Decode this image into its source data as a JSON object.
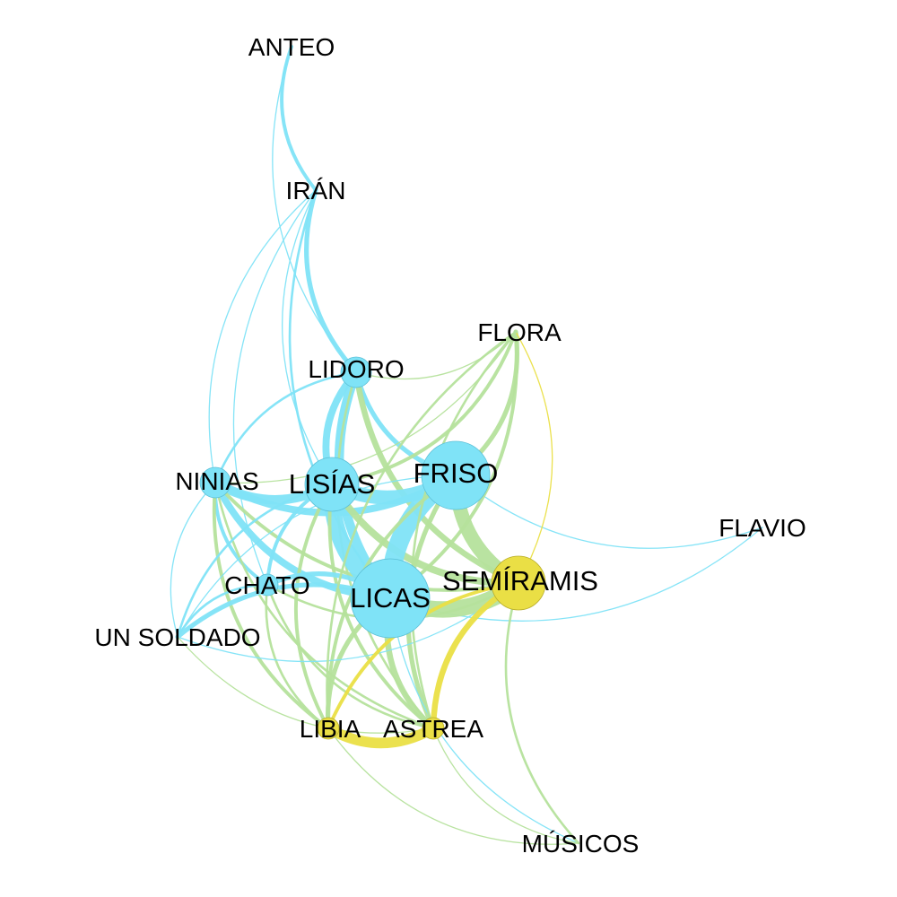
{
  "colors": {
    "blue": "#7fe3f7",
    "green": "#b5e29c",
    "yellow": "#eadf45",
    "node_stroke_blue": "#5bbfd6",
    "node_stroke_yellow": "#b8ad2a"
  },
  "nodes": [
    {
      "id": "ANTEO",
      "label": "ANTEO",
      "group": "blue",
      "weight": 0
    },
    {
      "id": "IRAN",
      "label": "IRÁN",
      "group": "blue",
      "weight": 0
    },
    {
      "id": "FLORA",
      "label": "FLORA",
      "group": "yellow",
      "weight": 0
    },
    {
      "id": "LIDORO",
      "label": "LIDORO",
      "group": "blue",
      "weight": 2
    },
    {
      "id": "NINIAS",
      "label": "NINIAS",
      "group": "blue",
      "weight": 2
    },
    {
      "id": "LISIAS",
      "label": "LISÍAS",
      "group": "blue",
      "weight": 4
    },
    {
      "id": "FRISO",
      "label": "FRISO",
      "group": "blue",
      "weight": 5
    },
    {
      "id": "FLAVIO",
      "label": "FLAVIO",
      "group": "blue",
      "weight": 0
    },
    {
      "id": "CHATO",
      "label": "CHATO",
      "group": "blue",
      "weight": 1
    },
    {
      "id": "SEMIRAMIS",
      "label": "SEMÍRAMIS",
      "group": "yellow",
      "weight": 4
    },
    {
      "id": "LICAS",
      "label": "LICAS",
      "group": "blue",
      "weight": 6
    },
    {
      "id": "UNSOLDADO",
      "label": "UN SOLDADO",
      "group": "blue",
      "weight": 0
    },
    {
      "id": "LIBIA",
      "label": "LIBIA",
      "group": "yellow",
      "weight": 1
    },
    {
      "id": "ASTREA",
      "label": "ASTREA",
      "group": "yellow",
      "weight": 1
    },
    {
      "id": "MUSICOS",
      "label": "MÚSICOS",
      "group": "yellow",
      "weight": 0
    }
  ],
  "edges": [
    {
      "from": "ANTEO",
      "to": "IRAN",
      "color": "blue",
      "weight": 3
    },
    {
      "from": "ANTEO",
      "to": "LIDORO",
      "color": "blue",
      "weight": 1
    },
    {
      "from": "IRAN",
      "to": "LIDORO",
      "color": "blue",
      "weight": 4
    },
    {
      "from": "IRAN",
      "to": "NINIAS",
      "color": "blue",
      "weight": 1
    },
    {
      "from": "IRAN",
      "to": "LISIAS",
      "color": "blue",
      "weight": 1
    },
    {
      "from": "IRAN",
      "to": "LICAS",
      "color": "blue",
      "weight": 2
    },
    {
      "from": "IRAN",
      "to": "CHATO",
      "color": "blue",
      "weight": 1
    },
    {
      "from": "LIDORO",
      "to": "LISIAS",
      "color": "blue",
      "weight": 6
    },
    {
      "from": "LIDORO",
      "to": "FRISO",
      "color": "blue",
      "weight": 4
    },
    {
      "from": "LIDORO",
      "to": "LICAS",
      "color": "blue",
      "weight": 8
    },
    {
      "from": "LIDORO",
      "to": "NINIAS",
      "color": "blue",
      "weight": 2
    },
    {
      "from": "LIDORO",
      "to": "FLORA",
      "color": "green",
      "weight": 1
    },
    {
      "from": "LIDORO",
      "to": "SEMIRAMIS",
      "color": "green",
      "weight": 5
    },
    {
      "from": "LIDORO",
      "to": "ASTREA",
      "color": "green",
      "weight": 2
    },
    {
      "from": "NINIAS",
      "to": "LISIAS",
      "color": "blue",
      "weight": 8
    },
    {
      "from": "NINIAS",
      "to": "FRISO",
      "color": "blue",
      "weight": 6
    },
    {
      "from": "NINIAS",
      "to": "LICAS",
      "color": "blue",
      "weight": 6
    },
    {
      "from": "NINIAS",
      "to": "UNSOLDADO",
      "color": "blue",
      "weight": 1
    },
    {
      "from": "NINIAS",
      "to": "CHATO",
      "color": "blue",
      "weight": 3
    },
    {
      "from": "NINIAS",
      "to": "FLORA",
      "color": "green",
      "weight": 1
    },
    {
      "from": "NINIAS",
      "to": "SEMIRAMIS",
      "color": "green",
      "weight": 3
    },
    {
      "from": "NINIAS",
      "to": "LIBIA",
      "color": "green",
      "weight": 3
    },
    {
      "from": "NINIAS",
      "to": "ASTREA",
      "color": "green",
      "weight": 2
    },
    {
      "from": "LISIAS",
      "to": "FRISO",
      "color": "blue",
      "weight": 12
    },
    {
      "from": "LISIAS",
      "to": "LICAS",
      "color": "blue",
      "weight": 14
    },
    {
      "from": "LISIAS",
      "to": "CHATO",
      "color": "blue",
      "weight": 3
    },
    {
      "from": "LISIAS",
      "to": "UNSOLDADO",
      "color": "blue",
      "weight": 2
    },
    {
      "from": "LISIAS",
      "to": "FLORA",
      "color": "green",
      "weight": 3
    },
    {
      "from": "LISIAS",
      "to": "SEMIRAMIS",
      "color": "green",
      "weight": 6
    },
    {
      "from": "LISIAS",
      "to": "LIBIA",
      "color": "green",
      "weight": 3
    },
    {
      "from": "LISIAS",
      "to": "ASTREA",
      "color": "green",
      "weight": 3
    },
    {
      "from": "FRISO",
      "to": "LICAS",
      "color": "blue",
      "weight": 16
    },
    {
      "from": "FRISO",
      "to": "FLAVIO",
      "color": "blue",
      "weight": 1
    },
    {
      "from": "FRISO",
      "to": "UNSOLDADO",
      "color": "blue",
      "weight": 1
    },
    {
      "from": "FRISO",
      "to": "FLORA",
      "color": "green",
      "weight": 4
    },
    {
      "from": "FRISO",
      "to": "SEMIRAMIS",
      "color": "green",
      "weight": 12
    },
    {
      "from": "FRISO",
      "to": "ASTREA",
      "color": "green",
      "weight": 4
    },
    {
      "from": "FRISO",
      "to": "LIBIA",
      "color": "green",
      "weight": 3
    },
    {
      "from": "LICAS",
      "to": "CHATO",
      "color": "blue",
      "weight": 4
    },
    {
      "from": "LICAS",
      "to": "UNSOLDADO",
      "color": "blue",
      "weight": 4
    },
    {
      "from": "LICAS",
      "to": "FLAVIO",
      "color": "blue",
      "weight": 1
    },
    {
      "from": "LICAS",
      "to": "SEMIRAMIS",
      "color": "green",
      "weight": 14
    },
    {
      "from": "LICAS",
      "to": "FLORA",
      "color": "green",
      "weight": 3
    },
    {
      "from": "LICAS",
      "to": "LIBIA",
      "color": "green",
      "weight": 4
    },
    {
      "from": "LICAS",
      "to": "ASTREA",
      "color": "green",
      "weight": 5
    },
    {
      "from": "LICAS",
      "to": "MUSICOS",
      "color": "blue",
      "weight": 1
    },
    {
      "from": "CHATO",
      "to": "UNSOLDADO",
      "color": "blue",
      "weight": 2
    },
    {
      "from": "CHATO",
      "to": "LIBIA",
      "color": "green",
      "weight": 2
    },
    {
      "from": "CHATO",
      "to": "ASTREA",
      "color": "green",
      "weight": 2
    },
    {
      "from": "CHATO",
      "to": "SEMIRAMIS",
      "color": "green",
      "weight": 2
    },
    {
      "from": "UNSOLDADO",
      "to": "SEMIRAMIS",
      "color": "blue",
      "weight": 1
    },
    {
      "from": "UNSOLDADO",
      "to": "ASTREA",
      "color": "green",
      "weight": 1
    },
    {
      "from": "SEMIRAMIS",
      "to": "FLORA",
      "color": "yellow",
      "weight": 1
    },
    {
      "from": "SEMIRAMIS",
      "to": "ASTREA",
      "color": "yellow",
      "weight": 5
    },
    {
      "from": "SEMIRAMIS",
      "to": "LIBIA",
      "color": "yellow",
      "weight": 3
    },
    {
      "from": "SEMIRAMIS",
      "to": "MUSICOS",
      "color": "green",
      "weight": 2
    },
    {
      "from": "LIBIA",
      "to": "ASTREA",
      "color": "yellow",
      "weight": 9
    },
    {
      "from": "LIBIA",
      "to": "MUSICOS",
      "color": "green",
      "weight": 1
    },
    {
      "from": "ASTREA",
      "to": "MUSICOS",
      "color": "green",
      "weight": 1
    },
    {
      "from": "FLORA",
      "to": "ASTREA",
      "color": "green",
      "weight": 2
    },
    {
      "from": "FLORA",
      "to": "LIBIA",
      "color": "green",
      "weight": 2
    }
  ]
}
